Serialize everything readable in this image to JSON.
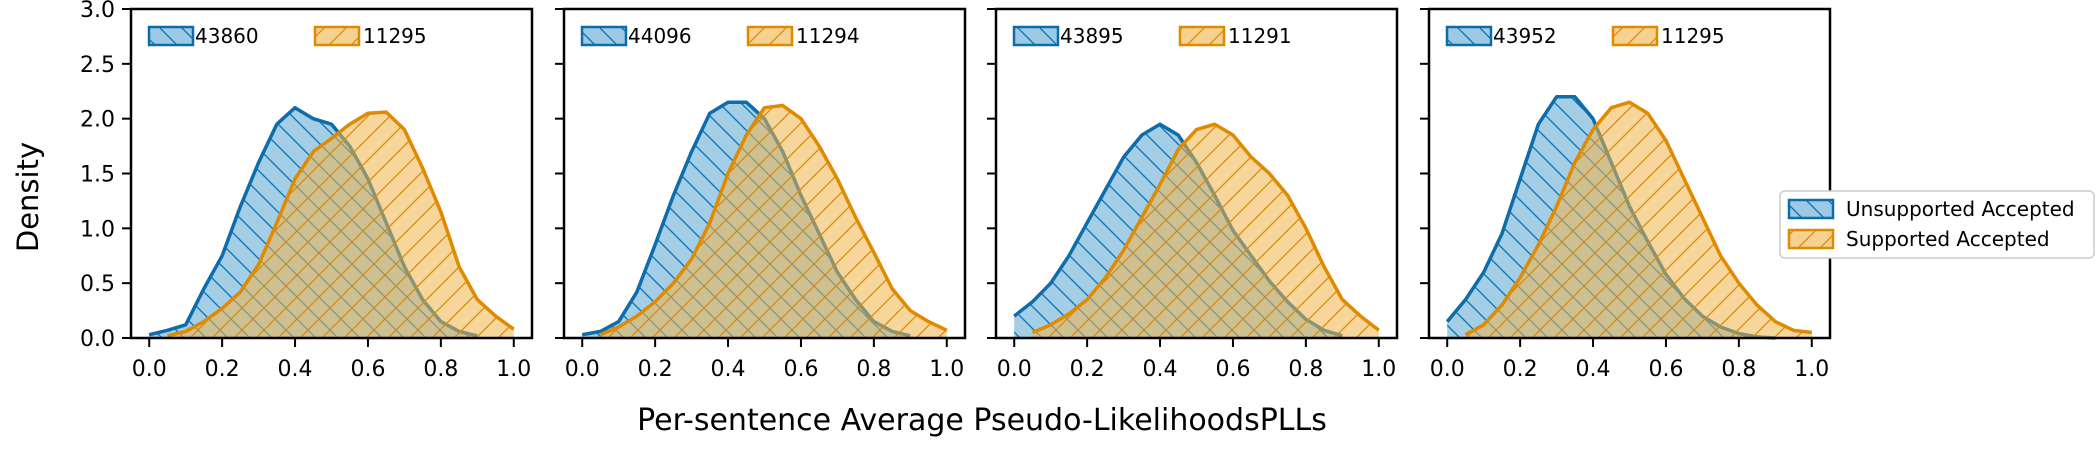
{
  "chart_data": {
    "type": "area",
    "xlabel": "Per-sentence Average Pseudo-LikelihoodsPLLs",
    "ylabel": "Density",
    "xlim": [
      -0.05,
      1.05
    ],
    "ylim": [
      0,
      3.0
    ],
    "xticks": [
      0.0,
      0.2,
      0.4,
      0.6,
      0.8,
      1.0
    ],
    "yticks": [
      0.0,
      0.5,
      1.0,
      1.5,
      2.0,
      2.5,
      3.0
    ],
    "grid": false,
    "legend_placement": "right",
    "x": [
      0.0,
      0.05,
      0.1,
      0.15,
      0.2,
      0.25,
      0.3,
      0.35,
      0.4,
      0.45,
      0.5,
      0.55,
      0.6,
      0.65,
      0.7,
      0.75,
      0.8,
      0.85,
      0.9,
      0.95,
      1.0
    ],
    "series_styles": [
      {
        "name": "Unsupported Accepted",
        "fill": "#5aa5d1",
        "stroke": "#0d6dab",
        "hatch": "backslash"
      },
      {
        "name": "Supported Accepted",
        "fill": "#f0b44a",
        "stroke": "#e08a00",
        "hatch": "slash"
      }
    ],
    "panels": [
      {
        "legend_counts": [
          "43860",
          "11295"
        ],
        "series": [
          {
            "name": "Unsupported Accepted",
            "x_range": [
              0.0,
              0.9
            ],
            "values": [
              0.03,
              0.07,
              0.12,
              0.45,
              0.75,
              1.2,
              1.6,
              1.95,
              2.1,
              2.0,
              1.95,
              1.75,
              1.45,
              1.05,
              0.65,
              0.35,
              0.15,
              0.06,
              0.02,
              0.0,
              0.0
            ]
          },
          {
            "name": "Supported Accepted",
            "x_range": [
              0.05,
              1.0
            ],
            "values": [
              0.0,
              0.02,
              0.06,
              0.15,
              0.27,
              0.42,
              0.67,
              1.05,
              1.45,
              1.7,
              1.82,
              1.95,
              2.05,
              2.06,
              1.9,
              1.55,
              1.15,
              0.65,
              0.35,
              0.2,
              0.08
            ]
          }
        ]
      },
      {
        "legend_counts": [
          "44096",
          "11294"
        ],
        "series": [
          {
            "name": "Unsupported Accepted",
            "x_range": [
              0.0,
              0.9
            ],
            "values": [
              0.03,
              0.06,
              0.15,
              0.42,
              0.85,
              1.3,
              1.7,
              2.05,
              2.15,
              2.15,
              2.0,
              1.7,
              1.3,
              0.95,
              0.6,
              0.35,
              0.15,
              0.06,
              0.02,
              0.0,
              0.0
            ]
          },
          {
            "name": "Supported Accepted",
            "x_range": [
              0.05,
              1.0
            ],
            "values": [
              0.0,
              0.03,
              0.1,
              0.2,
              0.33,
              0.5,
              0.72,
              1.05,
              1.5,
              1.85,
              2.1,
              2.12,
              2.0,
              1.75,
              1.45,
              1.1,
              0.78,
              0.45,
              0.25,
              0.15,
              0.07
            ]
          }
        ]
      },
      {
        "legend_counts": [
          "43895",
          "11291"
        ],
        "series": [
          {
            "name": "Unsupported Accepted",
            "x_range": [
              0.0,
              0.9
            ],
            "values": [
              0.2,
              0.33,
              0.5,
              0.75,
              1.05,
              1.35,
              1.65,
              1.85,
              1.95,
              1.85,
              1.6,
              1.3,
              0.98,
              0.75,
              0.52,
              0.33,
              0.17,
              0.07,
              0.02,
              0.0,
              0.0
            ]
          },
          {
            "name": "Supported Accepted",
            "x_range": [
              0.05,
              1.0
            ],
            "values": [
              0.0,
              0.05,
              0.12,
              0.22,
              0.35,
              0.55,
              0.8,
              1.1,
              1.4,
              1.72,
              1.9,
              1.95,
              1.85,
              1.65,
              1.5,
              1.3,
              1.0,
              0.65,
              0.35,
              0.2,
              0.07
            ]
          }
        ]
      },
      {
        "legend_counts": [
          "43952",
          "11295"
        ],
        "series": [
          {
            "name": "Unsupported Accepted",
            "x_range": [
              0.0,
              0.9
            ],
            "values": [
              0.15,
              0.35,
              0.6,
              0.95,
              1.45,
              1.95,
              2.2,
              2.2,
              2.0,
              1.6,
              1.2,
              0.88,
              0.58,
              0.36,
              0.2,
              0.1,
              0.04,
              0.01,
              0.0,
              0.0,
              0.0
            ]
          },
          {
            "name": "Supported Accepted",
            "x_range": [
              0.05,
              1.0
            ],
            "values": [
              0.0,
              0.03,
              0.12,
              0.3,
              0.55,
              0.85,
              1.2,
              1.6,
              1.9,
              2.1,
              2.15,
              2.05,
              1.8,
              1.45,
              1.1,
              0.75,
              0.5,
              0.3,
              0.15,
              0.07,
              0.05
            ]
          }
        ]
      }
    ]
  }
}
